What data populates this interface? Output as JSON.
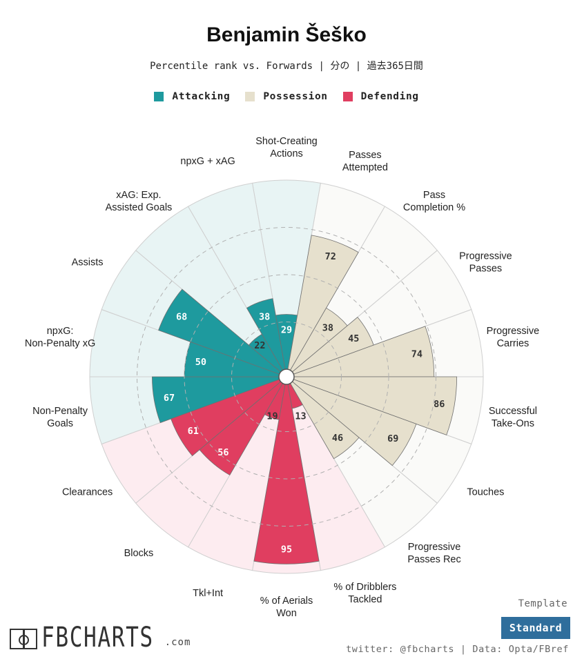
{
  "header": {
    "title": "Benjamin Šeško",
    "subtitle": "Percentile rank vs. Forwards | 分の | 過去365日間"
  },
  "legend": [
    {
      "label": "Attacking",
      "color": "#1e9a9e"
    },
    {
      "label": "Possession",
      "color": "#e6e0cd"
    },
    {
      "label": "Defending",
      "color": "#e03e60"
    }
  ],
  "footer": {
    "template_label": "Template",
    "template_value": "Standard",
    "credit": "twitter: @fbcharts | Data: Opta/FBref",
    "brand_name": "FBCHARTS",
    "brand_suffix": ".com"
  },
  "chart_data": {
    "type": "polar-bar",
    "rlim": [
      0,
      100
    ],
    "gridlines": [
      25,
      50,
      75
    ],
    "legend_position": "top-center",
    "categories": [
      {
        "label": "Shot-Creating Actions",
        "value": 29,
        "group": "Attacking"
      },
      {
        "label": "Passes Attempted",
        "value": 72,
        "group": "Possession"
      },
      {
        "label": "Pass Completion %",
        "value": 38,
        "group": "Possession"
      },
      {
        "label": "Progressive Passes",
        "value": 45,
        "group": "Possession"
      },
      {
        "label": "Progressive Carries",
        "value": 74,
        "group": "Possession"
      },
      {
        "label": "Successful Take-Ons",
        "value": 86,
        "group": "Possession"
      },
      {
        "label": "Touches",
        "value": 69,
        "group": "Possession"
      },
      {
        "label": "Progressive Passes Rec",
        "value": 46,
        "group": "Possession"
      },
      {
        "label": "% of Dribblers Tackled",
        "value": 13,
        "group": "Defending"
      },
      {
        "label": "% of Aerials Won",
        "value": 95,
        "group": "Defending"
      },
      {
        "label": "Tkl+Int",
        "value": 19,
        "group": "Defending"
      },
      {
        "label": "Blocks",
        "value": 56,
        "group": "Defending"
      },
      {
        "label": "Clearances",
        "value": 61,
        "group": "Defending"
      },
      {
        "label": "Non-Penalty Goals",
        "value": 67,
        "group": "Attacking"
      },
      {
        "label": "npxG: Non-Penalty xG",
        "value": 50,
        "group": "Attacking"
      },
      {
        "label": "Assists",
        "value": 68,
        "group": "Attacking"
      },
      {
        "label": "xAG: Exp. Assisted Goals",
        "value": 22,
        "group": "Attacking"
      },
      {
        "label": "npxG + xAG",
        "value": 38,
        "group": "Attacking"
      }
    ],
    "group_colors": {
      "Attacking": {
        "bar": "#1e9a9e",
        "bg": "#e8f4f4",
        "text": "#ffffff"
      },
      "Possession": {
        "bar": "#e6e0cd",
        "bg": "#fafaf8",
        "text": "#333333"
      },
      "Defending": {
        "bar": "#e03e60",
        "bg": "#fdecf0",
        "text": "#ffffff"
      }
    }
  }
}
